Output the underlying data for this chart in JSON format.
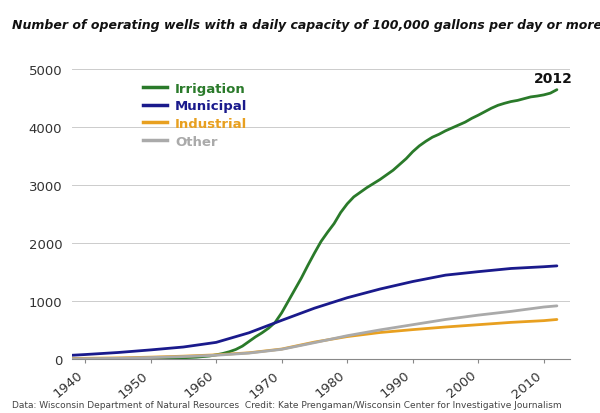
{
  "title": "Number of operating wells with a daily capacity of 100,000 gallons per day or more",
  "footnote": "Data: Wisconsin Department of Natural Resources  Credit: Kate Prengaman/Wisconsin Center for Investigative Journalism",
  "annotation": "2012",
  "xlim": [
    1938,
    2014
  ],
  "ylim": [
    0,
    5000
  ],
  "yticks": [
    0,
    1000,
    2000,
    3000,
    4000,
    5000
  ],
  "xticks": [
    1940,
    1950,
    1960,
    1970,
    1980,
    1990,
    2000,
    2010
  ],
  "series": {
    "Irrigation": {
      "color": "#2a7a2a",
      "years": [
        1936,
        1940,
        1945,
        1950,
        1955,
        1957,
        1958,
        1959,
        1960,
        1961,
        1962,
        1963,
        1964,
        1965,
        1966,
        1967,
        1968,
        1969,
        1970,
        1971,
        1972,
        1973,
        1974,
        1975,
        1976,
        1977,
        1978,
        1979,
        1980,
        1981,
        1982,
        1983,
        1984,
        1985,
        1986,
        1987,
        1988,
        1989,
        1990,
        1991,
        1992,
        1993,
        1994,
        1995,
        1996,
        1997,
        1998,
        1999,
        2000,
        2001,
        2002,
        2003,
        2004,
        2005,
        2006,
        2007,
        2008,
        2009,
        2010,
        2011,
        2012
      ],
      "values": [
        5,
        8,
        10,
        15,
        25,
        35,
        45,
        55,
        75,
        98,
        128,
        168,
        225,
        305,
        385,
        455,
        535,
        635,
        800,
        1000,
        1200,
        1400,
        1620,
        1830,
        2030,
        2190,
        2340,
        2530,
        2680,
        2800,
        2880,
        2960,
        3030,
        3100,
        3180,
        3260,
        3360,
        3460,
        3580,
        3680,
        3760,
        3830,
        3880,
        3940,
        3990,
        4040,
        4090,
        4155,
        4210,
        4270,
        4330,
        4380,
        4415,
        4445,
        4465,
        4495,
        4525,
        4540,
        4560,
        4590,
        4650
      ]
    },
    "Municipal": {
      "color": "#1a1a8c",
      "years": [
        1936,
        1940,
        1945,
        1950,
        1955,
        1960,
        1965,
        1970,
        1975,
        1980,
        1985,
        1990,
        1995,
        2000,
        2005,
        2010,
        2012
      ],
      "values": [
        55,
        80,
        115,
        160,
        210,
        290,
        455,
        670,
        880,
        1060,
        1210,
        1340,
        1450,
        1510,
        1565,
        1595,
        1610
      ]
    },
    "Industrial": {
      "color": "#e8a020",
      "years": [
        1936,
        1940,
        1945,
        1950,
        1955,
        1960,
        1965,
        1970,
        1975,
        1980,
        1985,
        1990,
        1995,
        2000,
        2005,
        2010,
        2012
      ],
      "values": [
        8,
        15,
        22,
        35,
        52,
        75,
        110,
        175,
        295,
        390,
        460,
        510,
        555,
        595,
        635,
        665,
        685
      ]
    },
    "Other": {
      "color": "#aaaaaa",
      "years": [
        1936,
        1940,
        1945,
        1950,
        1955,
        1960,
        1965,
        1970,
        1975,
        1980,
        1985,
        1990,
        1995,
        2000,
        2005,
        2010,
        2012
      ],
      "values": [
        5,
        8,
        15,
        28,
        45,
        68,
        105,
        170,
        285,
        405,
        505,
        595,
        685,
        760,
        825,
        900,
        920
      ]
    }
  },
  "background_color": "#ffffff",
  "legend_order": [
    "Irrigation",
    "Municipal",
    "Industrial",
    "Other"
  ]
}
